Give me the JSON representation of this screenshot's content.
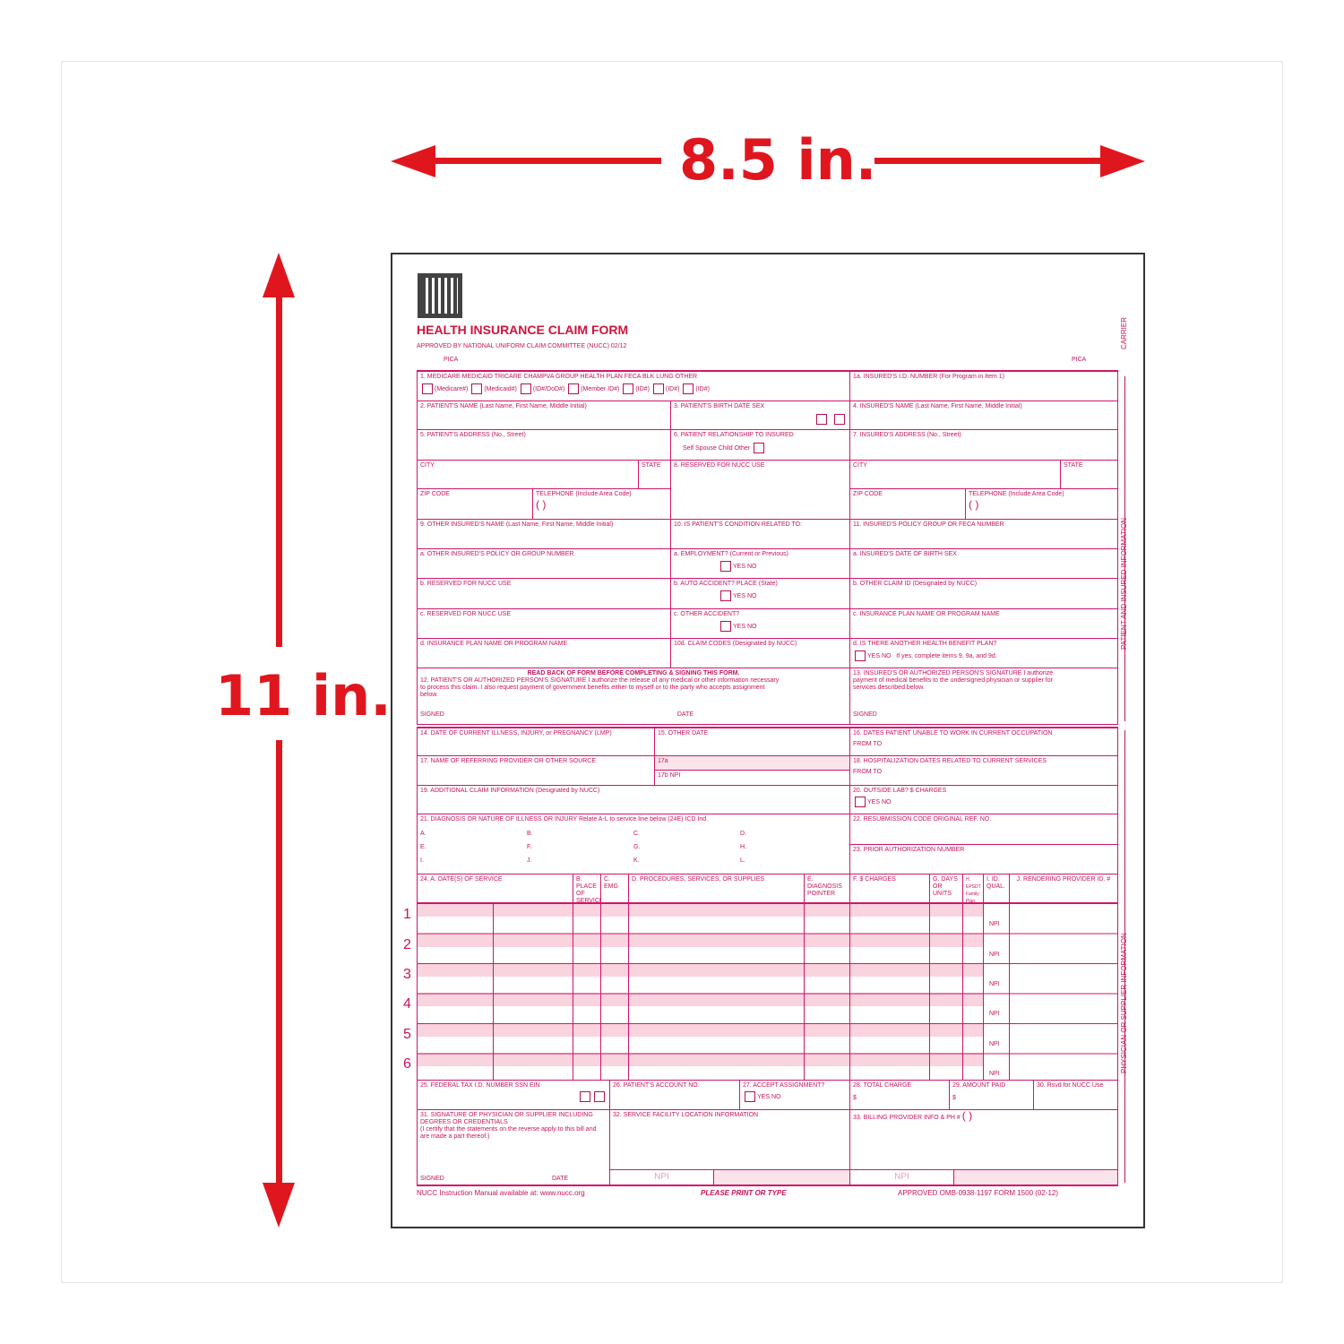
{
  "dimensions": {
    "width": "8.5 in.",
    "height": "11 in."
  },
  "colors": {
    "arrow": "#e0161e",
    "form_ink": "#c8125e"
  },
  "form": {
    "title": "HEALTH INSURANCE CLAIM FORM",
    "approved": "APPROVED BY NATIONAL UNIFORM CLAIM COMMITTEE (NUCC) 02/12",
    "pica": "PICA",
    "carrier": "CARRIER",
    "side_patient": "PATIENT AND INSURED INFORMATION",
    "side_physician": "PHYSICIAN OR SUPPLIER INFORMATION",
    "box1": {
      "label": "1. MEDICARE   MEDICAID   TRICARE   CHAMPVA   GROUP HEALTH PLAN   FECA BLK LUNG   OTHER",
      "opts": [
        "(Medicare#)",
        "(Medicaid#)",
        "(ID#/DoD#)",
        "(Member ID#)",
        "(ID#)",
        "(ID#)",
        "(ID#)"
      ]
    },
    "box1a": "1a. INSURED'S I.D. NUMBER                (For Program in Item 1)",
    "box2": "2. PATIENT'S NAME (Last Name, First Name, Middle Initial)",
    "box3": "3. PATIENT'S BIRTH DATE          SEX",
    "box4": "4. INSURED'S NAME (Last Name, First Name, Middle Initial)",
    "box5": "5. PATIENT'S ADDRESS (No., Street)",
    "box6": "6. PATIENT RELATIONSHIP TO INSURED",
    "box6_opts": "Self   Spouse   Child   Other",
    "box7": "7. INSURED'S ADDRESS (No., Street)",
    "city": "CITY",
    "state": "STATE",
    "box8": "8. RESERVED FOR NUCC USE",
    "zip": "ZIP CODE",
    "phone": "TELEPHONE (Include Area Code)",
    "parens": "(     )",
    "box9": "9. OTHER INSURED'S NAME (Last Name, First Name, Middle Initial)",
    "box10": "10. IS PATIENT'S CONDITION RELATED TO:",
    "box11": "11. INSURED'S POLICY GROUP OR FECA NUMBER",
    "box9a": "a. OTHER INSURED'S POLICY OR GROUP NUMBER",
    "box10a": "a. EMPLOYMENT? (Current or Previous)",
    "box11a": "a. INSURED'S DATE OF BIRTH            SEX",
    "box9b": "b. RESERVED FOR NUCC USE",
    "box10b": "b. AUTO ACCIDENT?        PLACE (State)",
    "box11b": "b. OTHER CLAIM ID (Designated by NUCC)",
    "box9c": "c. RESERVED FOR NUCC USE",
    "box10c": "c. OTHER ACCIDENT?",
    "box11c": "c. INSURANCE PLAN NAME OR PROGRAM NAME",
    "box9d": "d. INSURANCE PLAN NAME OR PROGRAM NAME",
    "box10d": "10d. CLAIM CODES (Designated by NUCC)",
    "box11d": "d. IS THERE ANOTHER HEALTH BENEFIT PLAN?",
    "yesno": "YES     NO",
    "box11d_note": "If yes, complete items 9, 9a, and 9d.",
    "box12_head": "READ BACK OF FORM BEFORE COMPLETING & SIGNING THIS FORM.",
    "box12": "12. PATIENT'S OR AUTHORIZED PERSON'S SIGNATURE  I authorize the release of any medical or other information necessary",
    "box12b": "to process this claim. I also request payment of government benefits either to myself or to the party who accepts assignment",
    "box12c": "below.",
    "box13": "13. INSURED'S OR AUTHORIZED PERSON'S SIGNATURE I authorize",
    "box13b": "payment of medical benefits to the undersigned physician or supplier for",
    "box13c": "services described below.",
    "signed": "SIGNED",
    "date": "DATE",
    "box14": "14. DATE OF CURRENT ILLNESS, INJURY, or PREGNANCY (LMP)",
    "box15": "15. OTHER DATE",
    "box16": "16. DATES PATIENT UNABLE TO WORK IN CURRENT OCCUPATION",
    "box17": "17. NAME OF REFERRING PROVIDER OR OTHER SOURCE",
    "box17a": "17a",
    "box17b": "17b  NPI",
    "box18": "18. HOSPITALIZATION DATES RELATED TO CURRENT SERVICES",
    "from_to": "FROM                          TO",
    "box19": "19. ADDITIONAL CLAIM INFORMATION (Designated by NUCC)",
    "box20": "20. OUTSIDE LAB?              $ CHARGES",
    "box21": "21. DIAGNOSIS OR NATURE OF ILLNESS OR INJURY  Relate A-L to service line below (24E)     ICD Ind.",
    "diag": [
      "A.",
      "B.",
      "C.",
      "D.",
      "E.",
      "F.",
      "G.",
      "H.",
      "I.",
      "J.",
      "K.",
      "L."
    ],
    "box22": "22. RESUBMISSION CODE          ORIGINAL REF. NO.",
    "box23": "23. PRIOR AUTHORIZATION NUMBER",
    "box24": [
      "24. A.  DATE(S) OF SERVICE",
      "B. PLACE OF SERVICE",
      "C. EMG",
      "D. PROCEDURES, SERVICES, OR SUPPLIES",
      "E. DIAGNOSIS POINTER",
      "F. $ CHARGES",
      "G. DAYS OR UNITS",
      "H. EPSDT Family Plan",
      "I. ID. QUAL.",
      "J. RENDERING PROVIDER ID. #"
    ],
    "rows": [
      "1",
      "2",
      "3",
      "4",
      "5",
      "6"
    ],
    "npi": "NPI",
    "box25": "25. FEDERAL TAX I.D. NUMBER    SSN EIN",
    "box26": "26. PATIENT'S ACCOUNT NO.",
    "box27": "27. ACCEPT ASSIGNMENT?",
    "box28": "28. TOTAL CHARGE",
    "box29": "29. AMOUNT PAID",
    "box30": "30. Rsvd for NUCC Use",
    "dollar": "$",
    "box31": "31. SIGNATURE OF PHYSICIAN OR SUPPLIER INCLUDING DEGREES OR CREDENTIALS",
    "box31b": "(I certify that the statements on the reverse apply to this bill and are made a part thereof.)",
    "box32": "32. SERVICE FACILITY LOCATION INFORMATION",
    "box33": "33. BILLING PROVIDER INFO & PH #",
    "footer_left": "NUCC Instruction Manual available at: www.nucc.org",
    "footer_mid": "PLEASE PRINT OR TYPE",
    "footer_right": "APPROVED OMB-0938-1197 FORM 1500 (02-12)"
  }
}
